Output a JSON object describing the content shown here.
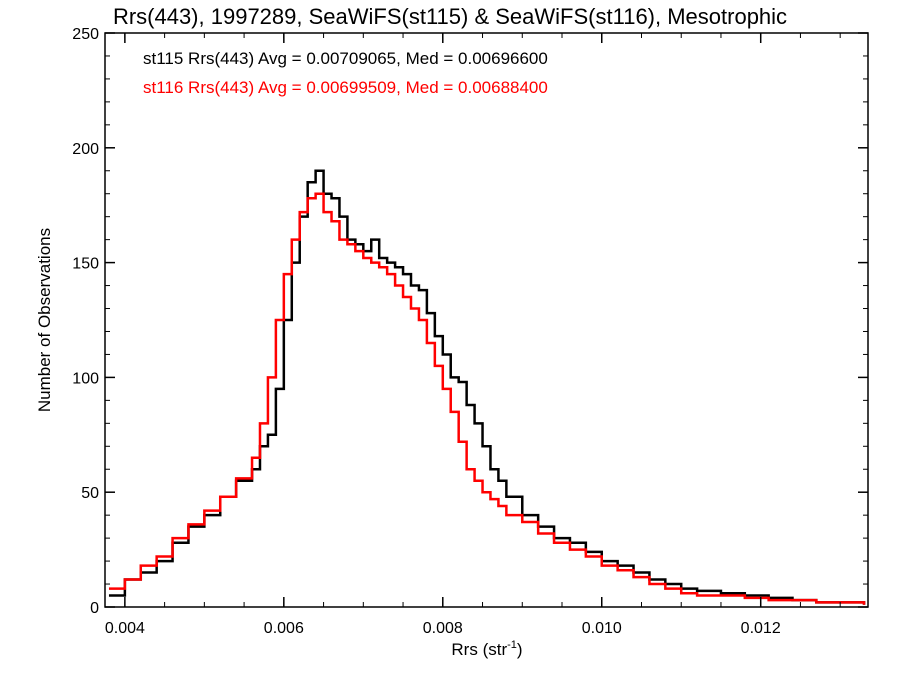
{
  "chart_data": {
    "type": "line",
    "title": "Rrs(443), 1997289, SeaWiFS(st115) & SeaWiFS(st116), Mesotrophic",
    "xlabel_main": "Rrs (str",
    "xlabel_sup": "-1",
    "xlabel_close": ")",
    "ylabel": "Number of Observations",
    "xlim": [
      0.00375,
      0.01335
    ],
    "ylim": [
      0,
      250
    ],
    "x_ticks": [
      0.004,
      0.006,
      0.008,
      0.01,
      0.012
    ],
    "x_tick_labels": [
      "0.004",
      "0.006",
      "0.008",
      "0.010",
      "0.012"
    ],
    "y_ticks": [
      0,
      50,
      100,
      150,
      200,
      250
    ],
    "y_tick_labels": [
      "0",
      "50",
      "100",
      "150",
      "200",
      "250"
    ],
    "grid": false,
    "legend_placement": "top-left",
    "annotations": [
      {
        "text": "st115 Rrs(443) Avg = 0.00709065, Med = 0.00696600",
        "color": "#000000"
      },
      {
        "text": "st116 Rrs(443) Avg = 0.00699509, Med = 0.00688400",
        "color": "#ff0000"
      }
    ],
    "series": [
      {
        "color": "#000000",
        "step": true,
        "x": [
          0.0038,
          0.004,
          0.0042,
          0.0044,
          0.0046,
          0.0048,
          0.005,
          0.0052,
          0.0054,
          0.0056,
          0.0057,
          0.0058,
          0.0059,
          0.006,
          0.0061,
          0.0062,
          0.0063,
          0.0064,
          0.0065,
          0.0066,
          0.0067,
          0.0068,
          0.0069,
          0.007,
          0.0071,
          0.0072,
          0.0073,
          0.0074,
          0.0075,
          0.0076,
          0.0077,
          0.0078,
          0.0079,
          0.008,
          0.0081,
          0.0082,
          0.0083,
          0.0084,
          0.0085,
          0.0086,
          0.0087,
          0.0088,
          0.009,
          0.0092,
          0.0094,
          0.0096,
          0.0098,
          0.01,
          0.0102,
          0.0104,
          0.0106,
          0.0108,
          0.011,
          0.0112,
          0.0115,
          0.0118,
          0.0121,
          0.0124,
          0.0127,
          0.013,
          0.0133
        ],
        "y": [
          5,
          12,
          15,
          20,
          28,
          35,
          40,
          48,
          55,
          60,
          70,
          75,
          95,
          125,
          150,
          170,
          185,
          190,
          180,
          178,
          170,
          160,
          158,
          155,
          160,
          152,
          150,
          148,
          145,
          140,
          138,
          128,
          118,
          110,
          100,
          98,
          88,
          80,
          70,
          60,
          55,
          48,
          40,
          35,
          30,
          28,
          24,
          20,
          18,
          15,
          12,
          10,
          8,
          7,
          6,
          5,
          4,
          3,
          2,
          2,
          1
        ]
      },
      {
        "color": "#ff0000",
        "step": true,
        "x": [
          0.0038,
          0.004,
          0.0042,
          0.0044,
          0.0046,
          0.0048,
          0.005,
          0.0052,
          0.0054,
          0.0056,
          0.0057,
          0.0058,
          0.0059,
          0.006,
          0.0061,
          0.0062,
          0.0063,
          0.0064,
          0.0065,
          0.0066,
          0.0067,
          0.0068,
          0.0069,
          0.007,
          0.0071,
          0.0072,
          0.0073,
          0.0074,
          0.0075,
          0.0076,
          0.0077,
          0.0078,
          0.0079,
          0.008,
          0.0081,
          0.0082,
          0.0083,
          0.0084,
          0.0085,
          0.0086,
          0.0087,
          0.0088,
          0.009,
          0.0092,
          0.0094,
          0.0096,
          0.0098,
          0.01,
          0.0102,
          0.0104,
          0.0106,
          0.0108,
          0.011,
          0.0112,
          0.0115,
          0.0118,
          0.0121,
          0.0124,
          0.0127,
          0.013,
          0.0133
        ],
        "y": [
          8,
          12,
          18,
          22,
          30,
          36,
          42,
          48,
          56,
          65,
          80,
          100,
          125,
          145,
          160,
          172,
          178,
          180,
          172,
          168,
          160,
          158,
          155,
          152,
          150,
          148,
          145,
          140,
          135,
          130,
          125,
          115,
          105,
          95,
          85,
          72,
          60,
          55,
          50,
          47,
          44,
          40,
          37,
          32,
          28,
          25,
          22,
          18,
          16,
          13,
          10,
          8,
          6,
          5,
          5,
          4,
          3,
          3,
          2,
          2,
          1
        ]
      }
    ]
  }
}
